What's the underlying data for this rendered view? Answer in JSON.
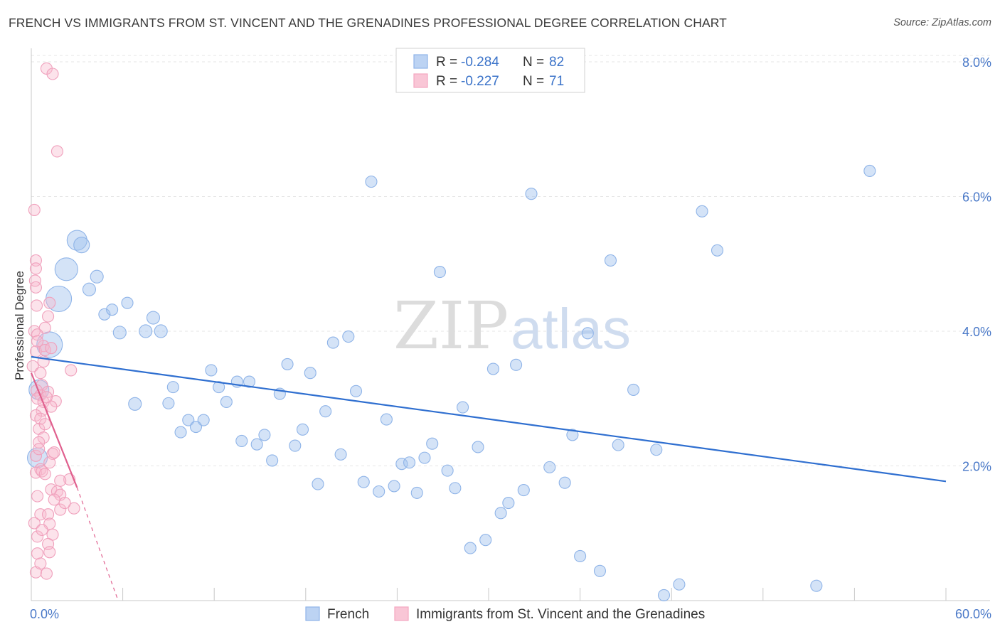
{
  "title": "FRENCH VS IMMIGRANTS FROM ST. VINCENT AND THE GRENADINES PROFESSIONAL DEGREE CORRELATION CHART",
  "source": "Source: ZipAtlas.com",
  "watermark": {
    "zip": "ZIP",
    "atlas": "atlas"
  },
  "colors": {
    "french": "#8fb4e8",
    "french_line": "#2f6fd0",
    "svg": "#f4a7c0",
    "svg_line": "#e0608e",
    "accent_text": "#4a79c8"
  },
  "chart_data": {
    "type": "scatter",
    "title": "FRENCH VS IMMIGRANTS FROM ST. VINCENT AND THE GRENADINES PROFESSIONAL DEGREE CORRELATION CHART",
    "xlabel": "",
    "ylabel": "Professional Degree",
    "xlim": [
      0,
      60
    ],
    "ylim": [
      0,
      8.2
    ],
    "x_tick_labels": [
      "0.0%",
      "60.0%"
    ],
    "y_ticks": [
      2,
      4,
      6,
      8
    ],
    "y_tick_labels": [
      "2.0%",
      "4.0%",
      "6.0%",
      "8.0%"
    ],
    "grid": true,
    "legend_position": "top-center",
    "legend": [
      {
        "r_label": "R = ",
        "r_value": "-0.284",
        "n_label": "N = ",
        "n_value": "82"
      },
      {
        "r_label": "R = ",
        "r_value": "-0.227",
        "n_label": "N = ",
        "n_value": "71"
      }
    ],
    "series": [
      {
        "name": "French",
        "trend": {
          "x": [
            0,
            60
          ],
          "y": [
            3.62,
            1.77
          ]
        },
        "points": [
          [
            3.0,
            5.35,
            14
          ],
          [
            3.3,
            5.28,
            11
          ],
          [
            2.3,
            4.92,
            16
          ],
          [
            1.8,
            4.48,
            18
          ],
          [
            4.3,
            4.81,
            9
          ],
          [
            3.8,
            4.62,
            9
          ],
          [
            6.3,
            4.42,
            8
          ],
          [
            4.8,
            4.25,
            8
          ],
          [
            5.3,
            4.32,
            8
          ],
          [
            5.8,
            3.98,
            9
          ],
          [
            7.5,
            4.0,
            9
          ],
          [
            8.0,
            4.2,
            9
          ],
          [
            8.5,
            4.0,
            9
          ],
          [
            1.2,
            3.8,
            18
          ],
          [
            0.5,
            3.13,
            14
          ],
          [
            0.4,
            2.12,
            14
          ],
          [
            6.8,
            2.92,
            9
          ],
          [
            9.0,
            2.93,
            8
          ],
          [
            9.3,
            3.17,
            8
          ],
          [
            10.3,
            2.68,
            8
          ],
          [
            9.8,
            2.5,
            8
          ],
          [
            10.8,
            2.58,
            8
          ],
          [
            11.3,
            2.68,
            8
          ],
          [
            11.8,
            3.42,
            8
          ],
          [
            12.3,
            3.17,
            8
          ],
          [
            12.8,
            2.95,
            8
          ],
          [
            13.5,
            3.25,
            8
          ],
          [
            13.8,
            2.37,
            8
          ],
          [
            14.3,
            3.25,
            8
          ],
          [
            14.8,
            2.32,
            8
          ],
          [
            15.3,
            2.46,
            8
          ],
          [
            15.8,
            2.08,
            8
          ],
          [
            16.3,
            3.07,
            8
          ],
          [
            16.8,
            3.51,
            8
          ],
          [
            17.3,
            2.3,
            8
          ],
          [
            17.8,
            2.54,
            8
          ],
          [
            18.3,
            3.38,
            8
          ],
          [
            18.8,
            1.73,
            8
          ],
          [
            19.3,
            2.81,
            8
          ],
          [
            19.8,
            3.83,
            8
          ],
          [
            20.3,
            2.17,
            8
          ],
          [
            20.8,
            3.92,
            8
          ],
          [
            21.3,
            3.11,
            8
          ],
          [
            21.8,
            1.76,
            8
          ],
          [
            22.3,
            6.22,
            8
          ],
          [
            22.8,
            1.62,
            8
          ],
          [
            23.3,
            2.69,
            8
          ],
          [
            23.8,
            1.7,
            8
          ],
          [
            24.3,
            2.03,
            8
          ],
          [
            24.8,
            2.05,
            8
          ],
          [
            25.3,
            1.6,
            8
          ],
          [
            25.8,
            2.12,
            8
          ],
          [
            26.3,
            2.33,
            8
          ],
          [
            26.8,
            4.88,
            8
          ],
          [
            27.3,
            1.93,
            8
          ],
          [
            27.8,
            1.67,
            8
          ],
          [
            28.3,
            2.87,
            8
          ],
          [
            28.8,
            0.78,
            8
          ],
          [
            29.3,
            2.28,
            8
          ],
          [
            29.8,
            0.9,
            8
          ],
          [
            30.3,
            3.44,
            8
          ],
          [
            30.8,
            1.3,
            8
          ],
          [
            31.3,
            1.45,
            8
          ],
          [
            31.8,
            3.5,
            8
          ],
          [
            32.3,
            1.64,
            8
          ],
          [
            32.8,
            6.04,
            8
          ],
          [
            34.0,
            1.98,
            8
          ],
          [
            35.0,
            1.75,
            8
          ],
          [
            35.5,
            2.46,
            8
          ],
          [
            36.0,
            0.66,
            8
          ],
          [
            36.5,
            3.97,
            8
          ],
          [
            37.3,
            0.44,
            8
          ],
          [
            38.0,
            5.05,
            8
          ],
          [
            38.5,
            2.31,
            8
          ],
          [
            39.5,
            3.13,
            8
          ],
          [
            41.0,
            2.24,
            8
          ],
          [
            41.5,
            0.08,
            8
          ],
          [
            42.5,
            0.24,
            8
          ],
          [
            44.0,
            5.78,
            8
          ],
          [
            45.0,
            5.2,
            8
          ],
          [
            51.5,
            0.22,
            8
          ],
          [
            55.0,
            6.38,
            8
          ]
        ]
      },
      {
        "name": "Immigrants from St. Vincent and the Grenadines",
        "trend": {
          "x": [
            0,
            3.0
          ],
          "y": [
            3.38,
            1.68
          ]
        },
        "trend_extension": {
          "x": [
            3.0,
            5.7
          ],
          "y": [
            1.68,
            0.0
          ]
        },
        "points": [
          [
            1.0,
            7.9,
            8
          ],
          [
            1.4,
            7.82,
            8
          ],
          [
            1.7,
            6.67,
            8
          ],
          [
            0.2,
            5.8,
            8
          ],
          [
            0.3,
            5.05,
            8
          ],
          [
            0.3,
            4.93,
            8
          ],
          [
            0.25,
            4.75,
            8
          ],
          [
            0.3,
            4.65,
            8
          ],
          [
            1.2,
            4.42,
            8
          ],
          [
            0.35,
            4.38,
            8
          ],
          [
            1.1,
            4.22,
            8
          ],
          [
            0.2,
            4.0,
            8
          ],
          [
            0.9,
            4.05,
            8
          ],
          [
            0.4,
            3.95,
            8
          ],
          [
            0.8,
            3.78,
            8
          ],
          [
            0.3,
            3.7,
            8
          ],
          [
            0.9,
            3.72,
            8
          ],
          [
            1.3,
            3.75,
            8
          ],
          [
            0.1,
            3.48,
            8
          ],
          [
            2.6,
            3.42,
            8
          ],
          [
            0.7,
            3.2,
            8
          ],
          [
            0.35,
            3.12,
            8
          ],
          [
            0.6,
            3.05,
            8
          ],
          [
            1.1,
            3.1,
            8
          ],
          [
            0.4,
            3.0,
            8
          ],
          [
            0.8,
            2.95,
            8
          ],
          [
            1.6,
            2.96,
            8
          ],
          [
            1.3,
            2.88,
            8
          ],
          [
            0.7,
            2.82,
            8
          ],
          [
            0.3,
            2.75,
            8
          ],
          [
            0.6,
            2.7,
            8
          ],
          [
            0.5,
            2.55,
            8
          ],
          [
            0.8,
            2.42,
            8
          ],
          [
            0.5,
            2.35,
            8
          ],
          [
            0.3,
            2.15,
            8
          ],
          [
            1.4,
            2.18,
            8
          ],
          [
            1.5,
            2.2,
            8
          ],
          [
            0.6,
            1.95,
            8
          ],
          [
            0.3,
            1.9,
            8
          ],
          [
            0.7,
            1.92,
            8
          ],
          [
            0.9,
            1.88,
            8
          ],
          [
            2.5,
            1.8,
            8
          ],
          [
            1.9,
            1.78,
            8
          ],
          [
            1.3,
            1.65,
            8
          ],
          [
            1.7,
            1.62,
            8
          ],
          [
            0.4,
            1.55,
            8
          ],
          [
            1.9,
            1.57,
            8
          ],
          [
            2.8,
            1.37,
            8
          ],
          [
            1.9,
            1.35,
            8
          ],
          [
            0.6,
            1.28,
            8
          ],
          [
            1.1,
            1.28,
            8
          ],
          [
            1.2,
            1.14,
            8
          ],
          [
            1.4,
            0.98,
            8
          ],
          [
            0.4,
            0.95,
            8
          ],
          [
            1.1,
            0.84,
            8
          ],
          [
            0.4,
            0.7,
            8
          ],
          [
            1.2,
            0.72,
            8
          ],
          [
            0.3,
            0.42,
            8
          ],
          [
            1.0,
            0.4,
            8
          ],
          [
            0.6,
            3.38,
            8
          ],
          [
            1.0,
            3.02,
            8
          ],
          [
            0.5,
            2.25,
            8
          ],
          [
            0.9,
            2.62,
            8
          ],
          [
            0.2,
            1.15,
            8
          ],
          [
            1.5,
            1.5,
            8
          ],
          [
            0.6,
            0.55,
            8
          ],
          [
            0.8,
            3.55,
            8
          ],
          [
            0.4,
            3.85,
            8
          ],
          [
            1.2,
            2.05,
            8
          ],
          [
            0.7,
            1.05,
            8
          ],
          [
            2.2,
            1.45,
            8
          ]
        ]
      }
    ]
  }
}
